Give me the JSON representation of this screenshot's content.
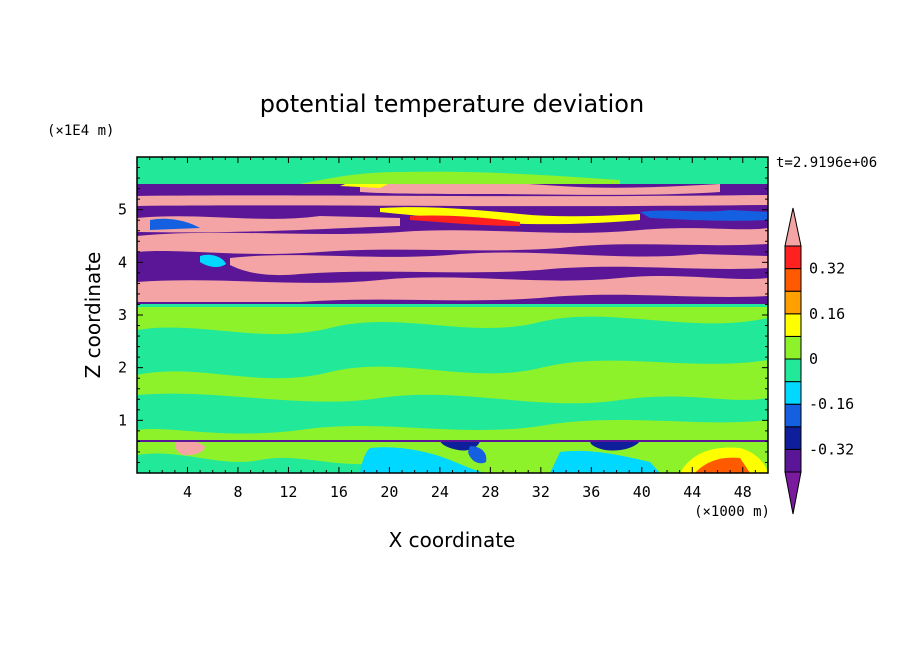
{
  "chart_data": {
    "type": "heatmap",
    "title": "potential temperature deviation",
    "xlabel": "X coordinate",
    "ylabel": "Z coordinate",
    "x_unit": "(×1000 m)",
    "y_unit": "(×1E4 m)",
    "time_label": "t=2.9196e+06",
    "xlim": [
      0,
      50
    ],
    "ylim": [
      0,
      6
    ],
    "x_ticks": [
      "4",
      "8",
      "12",
      "16",
      "20",
      "24",
      "28",
      "32",
      "36",
      "40",
      "44",
      "48"
    ],
    "y_ticks": [
      "1",
      "2",
      "3",
      "4",
      "5"
    ],
    "colorbar": {
      "levels": [
        -0.4,
        -0.32,
        -0.24,
        -0.16,
        -0.08,
        0,
        0.08,
        0.16,
        0.24,
        0.32,
        0.4
      ],
      "tick_labels": [
        "0.32",
        "0.16",
        "0",
        "-0.16",
        "-0.32"
      ],
      "colors": [
        "#7a1a9e",
        "#5a1696",
        "#0f1e9a",
        "#1560e0",
        "#00d8ff",
        "#22e89a",
        "#8ef22a",
        "#ffff00",
        "#ffa000",
        "#ff5a00",
        "#ff2020",
        "#f4a4a4"
      ]
    },
    "bands": [
      {
        "z": [
          0.0,
          0.6
        ],
        "description": "mixed near-surface layer"
      },
      {
        "z": [
          0.6,
          3.2
        ],
        "description": "green/cyan mostly near 0"
      },
      {
        "z": [
          3.2,
          5.6
        ],
        "description": "alternating purple and pink strata"
      },
      {
        "z": [
          5.6,
          6.0
        ],
        "description": "green near 0"
      }
    ]
  }
}
